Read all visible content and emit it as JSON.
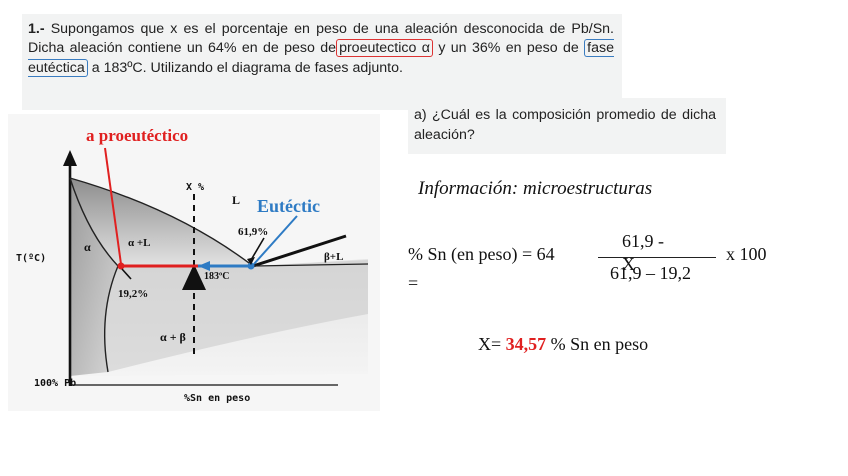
{
  "problem": {
    "number": "1.-",
    "text_before": " Supongamos que x es el porcentaje en peso de una aleación desconocida de Pb/Sn. Dicha aleación contiene un 64%  en de peso de",
    "highlight_red": "proeutectico α",
    "text_middle": " y un 36% en peso de ",
    "highlight_blue": "fase eutéctica",
    "text_after": " a 183ºC. Utilizando el diagrama de fases adjunto."
  },
  "question": {
    "text": "a)  ¿Cuál es la composición promedio de dicha aleación?"
  },
  "diagram": {
    "title_proeutectic": "a proeutéctico",
    "label_x_pct": "X %",
    "label_eutectic": "Eutéctic",
    "label_L": "L",
    "label_eut_comp": "61,9%",
    "label_alpha": "α",
    "label_alpha_L": "α +L",
    "label_beta_L": "β+L",
    "label_temp": "183ºC",
    "label_19": "19,2%",
    "label_alpha_beta": "α + β",
    "y_axis": "T(ºC)",
    "x_left": "100% Pb",
    "x_axis": "%Sn en peso",
    "colors": {
      "red": "#e02020",
      "blue": "#2e7bc4"
    }
  },
  "solution": {
    "info_heading": "Información: microestructuras",
    "formula_label": "% Sn (en peso) = 64",
    "equals": "=",
    "numerator": "61,9 -",
    "x_symbol": "X",
    "denominator": "61,9 – 19,2",
    "times_100": "x 100",
    "result_prefix": "X= ",
    "result_value": "34,57",
    "result_suffix": " % Sn en peso"
  }
}
